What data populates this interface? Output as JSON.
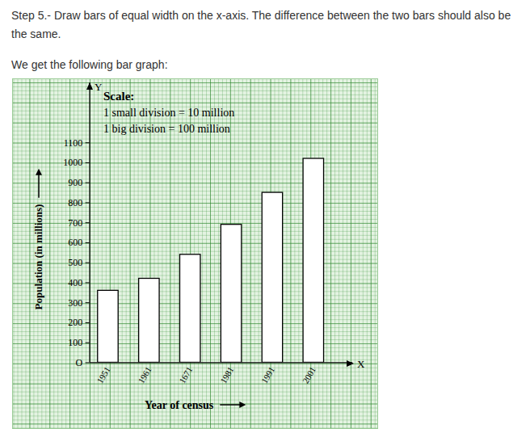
{
  "document": {
    "paragraphs": [
      "Step 5.- Draw bars of equal width on the x-axis. The difference between the two bars should also be the same.",
      "We get the following bar graph:"
    ]
  },
  "chart_data": {
    "type": "bar",
    "categories": [
      "1951",
      "1961",
      "1671",
      "1981",
      "1991",
      "2001"
    ],
    "values": [
      360,
      420,
      540,
      690,
      850,
      1020
    ],
    "color": "#ffffff",
    "x_label": "Year of census",
    "y_label": "Population (in millions)",
    "axis_letters": {
      "x": "X",
      "y": "Y"
    },
    "scale_note": [
      "Scale:",
      "1 small division = 10 million",
      "1 big division = 100 million"
    ],
    "ylim": [
      0,
      1400
    ],
    "yticks": [
      {
        "value": 0,
        "label": "O"
      },
      100,
      200,
      300,
      400,
      500,
      600,
      700,
      800,
      900,
      1000,
      1100
    ],
    "grid": true
  }
}
